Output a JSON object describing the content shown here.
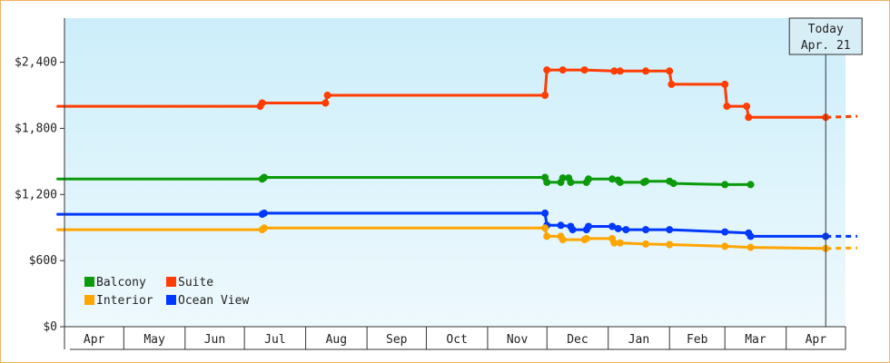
{
  "chart_data": {
    "type": "line",
    "title": "",
    "xlabel": "",
    "ylabel": "",
    "ylim": [
      0,
      2800
    ],
    "yticks": [
      {
        "value": 0,
        "label": "$0"
      },
      {
        "value": 600,
        "label": "$600"
      },
      {
        "value": 1200,
        "label": "$1,200"
      },
      {
        "value": 1800,
        "label": "$1,800"
      },
      {
        "value": 2400,
        "label": "$2,400"
      }
    ],
    "xlim": [
      "2021-04-01",
      "2022-05-01"
    ],
    "month_ticks": [
      {
        "start": "2021-04-01",
        "label": "Apr"
      },
      {
        "start": "2021-05-01",
        "label": "May"
      },
      {
        "start": "2021-06-01",
        "label": "Jun"
      },
      {
        "start": "2021-07-01",
        "label": "Jul"
      },
      {
        "start": "2021-08-01",
        "label": "Aug"
      },
      {
        "start": "2021-09-01",
        "label": "Sep"
      },
      {
        "start": "2021-10-01",
        "label": "Oct"
      },
      {
        "start": "2021-11-01",
        "label": "Nov"
      },
      {
        "start": "2021-12-01",
        "label": "Dec"
      },
      {
        "start": "2022-01-01",
        "label": "Jan"
      },
      {
        "start": "2022-02-01",
        "label": "Feb"
      },
      {
        "start": "2022-03-01",
        "label": "Mar"
      },
      {
        "start": "2022-04-01",
        "label": "Apr"
      }
    ],
    "today": {
      "line1": "Today",
      "line2": "Apr. 21",
      "date": "2022-04-21"
    },
    "legend": {
      "placement": "bottom-left"
    },
    "background": {
      "top": "#cceefa",
      "bottom": "#eef9fd"
    },
    "series": [
      {
        "name": "Suite",
        "color": "#ff3d00",
        "points": [
          [
            "2021-03-28",
            2000
          ],
          [
            "2021-07-09",
            2000
          ],
          [
            "2021-07-10",
            2030
          ],
          [
            "2021-08-11",
            2030
          ],
          [
            "2021-08-12",
            2100
          ],
          [
            "2021-11-30",
            2100
          ],
          [
            "2021-12-01",
            2330
          ],
          [
            "2021-12-09",
            2330
          ],
          [
            "2021-12-20",
            2330
          ],
          [
            "2022-01-04",
            2320
          ],
          [
            "2022-01-07",
            2320
          ],
          [
            "2022-01-20",
            2320
          ],
          [
            "2022-02-01",
            2320
          ],
          [
            "2022-02-02",
            2200
          ],
          [
            "2022-03-01",
            2200
          ],
          [
            "2022-03-02",
            2000
          ],
          [
            "2022-03-12",
            2000
          ],
          [
            "2022-03-13",
            1900
          ],
          [
            "2022-04-21",
            1900
          ]
        ],
        "projected": [
          [
            "2022-04-21",
            1900
          ],
          [
            "2022-05-07",
            1910
          ]
        ]
      },
      {
        "name": "Balcony",
        "color": "#0a9a0a",
        "points": [
          [
            "2021-03-28",
            1340
          ],
          [
            "2021-07-10",
            1340
          ],
          [
            "2021-07-11",
            1355
          ],
          [
            "2021-11-30",
            1355
          ],
          [
            "2021-12-01",
            1310
          ],
          [
            "2021-12-08",
            1310
          ],
          [
            "2021-12-09",
            1350
          ],
          [
            "2021-12-12",
            1350
          ],
          [
            "2021-12-13",
            1310
          ],
          [
            "2021-12-21",
            1310
          ],
          [
            "2021-12-22",
            1340
          ],
          [
            "2022-01-03",
            1340
          ],
          [
            "2022-01-06",
            1330
          ],
          [
            "2022-01-07",
            1310
          ],
          [
            "2022-01-19",
            1310
          ],
          [
            "2022-01-20",
            1320
          ],
          [
            "2022-02-01",
            1320
          ],
          [
            "2022-02-03",
            1300
          ],
          [
            "2022-03-01",
            1290
          ],
          [
            "2022-03-14",
            1290
          ]
        ]
      },
      {
        "name": "Ocean View",
        "color": "#0038ff",
        "points": [
          [
            "2021-03-28",
            1020
          ],
          [
            "2021-07-10",
            1020
          ],
          [
            "2021-07-11",
            1030
          ],
          [
            "2021-11-30",
            1030
          ],
          [
            "2021-12-01",
            920
          ],
          [
            "2021-12-08",
            920
          ],
          [
            "2021-12-13",
            910
          ],
          [
            "2021-12-14",
            880
          ],
          [
            "2021-12-21",
            880
          ],
          [
            "2021-12-22",
            910
          ],
          [
            "2022-01-03",
            910
          ],
          [
            "2022-01-06",
            890
          ],
          [
            "2022-01-10",
            880
          ],
          [
            "2022-01-20",
            880
          ],
          [
            "2022-02-01",
            880
          ],
          [
            "2022-03-01",
            860
          ],
          [
            "2022-03-13",
            850
          ],
          [
            "2022-03-14",
            820
          ],
          [
            "2022-04-21",
            820
          ]
        ],
        "projected": [
          [
            "2022-04-21",
            820
          ],
          [
            "2022-05-07",
            820
          ]
        ]
      },
      {
        "name": "Interior",
        "color": "#ffa500",
        "points": [
          [
            "2021-03-28",
            880
          ],
          [
            "2021-07-10",
            880
          ],
          [
            "2021-07-11",
            895
          ],
          [
            "2021-11-30",
            895
          ],
          [
            "2021-12-01",
            820
          ],
          [
            "2021-12-08",
            820
          ],
          [
            "2021-12-09",
            790
          ],
          [
            "2021-12-20",
            790
          ],
          [
            "2021-12-21",
            800
          ],
          [
            "2022-01-03",
            800
          ],
          [
            "2022-01-04",
            760
          ],
          [
            "2022-01-07",
            760
          ],
          [
            "2022-01-20",
            750
          ],
          [
            "2022-02-01",
            745
          ],
          [
            "2022-03-01",
            730
          ],
          [
            "2022-03-14",
            720
          ],
          [
            "2022-04-21",
            710
          ]
        ],
        "projected": [
          [
            "2022-04-21",
            710
          ],
          [
            "2022-05-07",
            715
          ]
        ]
      }
    ],
    "legend_order": [
      "Balcony",
      "Suite",
      "Interior",
      "Ocean View"
    ]
  }
}
